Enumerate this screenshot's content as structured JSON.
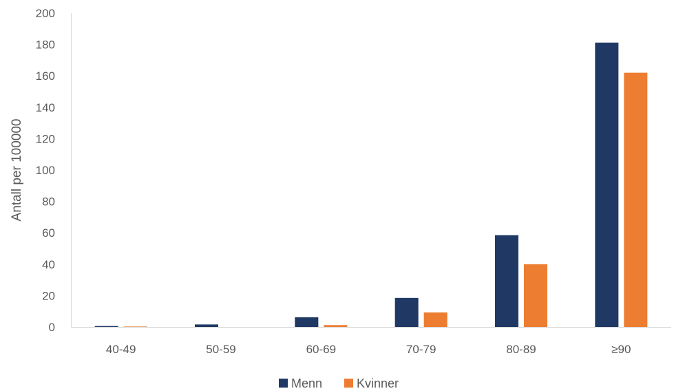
{
  "chart_data": {
    "type": "bar",
    "categories": [
      "40-49",
      "50-59",
      "60-69",
      "70-79",
      "80-89",
      "≥90"
    ],
    "series": [
      {
        "name": "Menn",
        "values": [
          0.6,
          1.6,
          6.2,
          18.5,
          58.5,
          181.2
        ],
        "color": "#203864"
      },
      {
        "name": "Kvinner",
        "values": [
          0.3,
          0,
          1.2,
          9.3,
          40,
          162
        ],
        "color": "#ED7D31"
      }
    ],
    "title": "",
    "xlabel": "",
    "ylabel": "Antall per 100000",
    "ylim": [
      0,
      200
    ],
    "yticks": [
      0,
      20,
      40,
      60,
      80,
      100,
      120,
      140,
      160,
      180,
      200
    ],
    "grid": false,
    "legend": "bottom"
  }
}
